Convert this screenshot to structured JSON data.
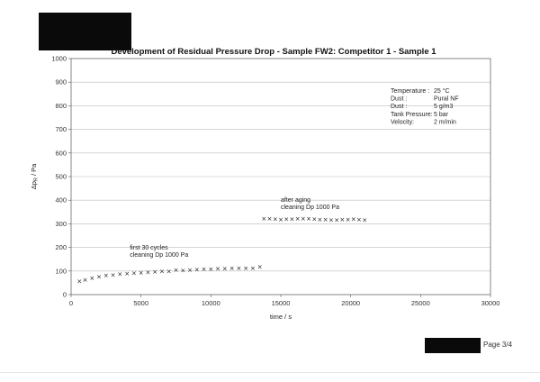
{
  "page": {
    "page_label": "Page 3/4"
  },
  "chart_data": {
    "type": "scatter",
    "title": "Development of Residual Pressure Drop - Sample FW2: Competitor 1 - Sample 1",
    "xlabel": "time / s",
    "ylabel": "Δp",
    "ylabel_sub": "R",
    "ylabel_unit": " / Pa",
    "xlim": [
      0,
      30000
    ],
    "ylim": [
      0,
      1000
    ],
    "x_ticks": [
      0,
      5000,
      10000,
      15000,
      20000,
      25000,
      30000
    ],
    "y_ticks": [
      0,
      100,
      200,
      300,
      400,
      500,
      600,
      700,
      800,
      900,
      1000
    ],
    "grid": "horizontal",
    "marker": "×",
    "marker_color": "#111111",
    "series": [
      {
        "x": [
          600,
          1000,
          1500,
          2000,
          2500,
          3000,
          3500,
          4000,
          4500,
          5000,
          5500,
          6000,
          6500,
          7000,
          7500,
          8000,
          8500,
          9000,
          9500,
          10000,
          10500,
          11000,
          11500,
          12000,
          12500,
          13000,
          13500
        ],
        "y": [
          55,
          62,
          68,
          75,
          80,
          83,
          86,
          88,
          90,
          92,
          94,
          96,
          97,
          97,
          104,
          102,
          104,
          105,
          106,
          106,
          108,
          108,
          110,
          110,
          111,
          111,
          116
        ]
      },
      {
        "x": [
          13800,
          14200,
          14600,
          15000,
          15400,
          15800,
          16200,
          16600,
          17000,
          17400,
          17800,
          18200,
          18600,
          19000,
          19400,
          19800,
          20200,
          20600,
          21000
        ],
        "y": [
          320,
          320,
          318,
          317,
          318,
          319,
          320,
          320,
          320,
          318,
          316,
          316,
          315,
          315,
          316,
          317,
          318,
          316,
          315
        ]
      }
    ],
    "annotations": [
      {
        "lines": [
          "first 30 cycles",
          "cleaning Dp 1000 Pa"
        ],
        "x": 4200,
        "y": 190
      },
      {
        "lines": [
          "after aging",
          "cleaning Dp 1000 Pa"
        ],
        "x": 15000,
        "y": 393
      }
    ],
    "info_box": [
      {
        "label": "Temperature :",
        "value": "25 °C"
      },
      {
        "label": "Dust :",
        "value": "Pural NF"
      },
      {
        "label": "Dust :",
        "value": "5 g/m3"
      },
      {
        "label": "Tank Pressure:",
        "value": "5 bar"
      },
      {
        "label": "Velocity:",
        "value": "2 m/min"
      }
    ]
  }
}
